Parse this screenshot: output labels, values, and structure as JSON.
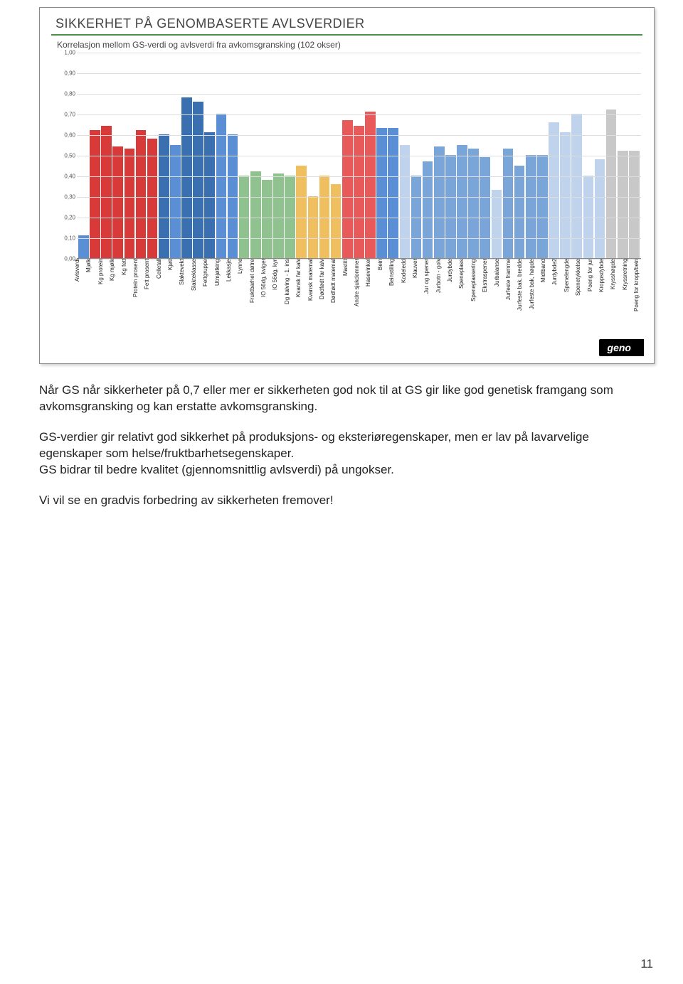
{
  "slide": {
    "title": "SIKKERHET PÅ GENOMBASERTE AVLSVERDIER",
    "subtitle": "Korrelasjon mellom GS-verdi og avlsverdi fra avkomsgransking (102 okser)",
    "logo": "geno"
  },
  "chart": {
    "type": "bar",
    "ylim": [
      0,
      1.0
    ],
    "ytick_step": 0.1,
    "yticks": [
      "0,00",
      "0,10",
      "0,20",
      "0,30",
      "0,40",
      "0,50",
      "0,60",
      "0,70",
      "0,80",
      "0,90",
      "1,00"
    ],
    "grid_color": "#dddddd",
    "background_color": "#ffffff",
    "label_fontsize": 8,
    "bars": [
      {
        "label": "Avlsverdi",
        "value": 0.11,
        "color": "#5a8fd6"
      },
      {
        "label": "Mjølk",
        "value": 0.62,
        "color": "#d83a3a"
      },
      {
        "label": "Kg protein",
        "value": 0.64,
        "color": "#d83a3a"
      },
      {
        "label": "Kg mjølk",
        "value": 0.54,
        "color": "#d83a3a"
      },
      {
        "label": "Kg fett",
        "value": 0.53,
        "color": "#d83a3a"
      },
      {
        "label": "Protein prosent",
        "value": 0.62,
        "color": "#d83a3a"
      },
      {
        "label": "Fett prosent",
        "value": 0.58,
        "color": "#d83a3a"
      },
      {
        "label": "Celletall",
        "value": 0.6,
        "color": "#3a6fb0"
      },
      {
        "label": "Kjøtt",
        "value": 0.55,
        "color": "#5a8fd6"
      },
      {
        "label": "Slaktevekt",
        "value": 0.78,
        "color": "#3a6fb0"
      },
      {
        "label": "Slakteklasse",
        "value": 0.76,
        "color": "#3a6fb0"
      },
      {
        "label": "Fettgruppe",
        "value": 0.61,
        "color": "#3a6fb0"
      },
      {
        "label": "Utmjølking",
        "value": 0.7,
        "color": "#5a8fd6"
      },
      {
        "label": "Lekkasje",
        "value": 0.6,
        "color": "#5a8fd6"
      },
      {
        "label": "Lynne",
        "value": 0.4,
        "color": "#8fc28f"
      },
      {
        "label": "Fruktbarhet døtre",
        "value": 0.42,
        "color": "#8fc28f"
      },
      {
        "label": "IO 56dg, kviger",
        "value": 0.38,
        "color": "#8fc28f"
      },
      {
        "label": "IO 56dg, kyr",
        "value": 0.41,
        "color": "#8fc28f"
      },
      {
        "label": "Dg kalving - 1. ins",
        "value": 0.4,
        "color": "#8fc28f"
      },
      {
        "label": "Kvansk far kalv",
        "value": 0.45,
        "color": "#f0c060"
      },
      {
        "label": "Kvansk matemal",
        "value": 0.3,
        "color": "#f0c060"
      },
      {
        "label": "Dødfødt far kalv",
        "value": 0.4,
        "color": "#f0c060"
      },
      {
        "label": "Dødfødt matemal",
        "value": 0.36,
        "color": "#f0c060"
      },
      {
        "label": "Mastitt",
        "value": 0.67,
        "color": "#e85a5a"
      },
      {
        "label": "Andre sjukdommer",
        "value": 0.64,
        "color": "#e85a5a"
      },
      {
        "label": "Hasevinkel",
        "value": 0.71,
        "color": "#e85a5a"
      },
      {
        "label": "Bein",
        "value": 0.63,
        "color": "#5a8fd6"
      },
      {
        "label": "Beinstilling",
        "value": 0.63,
        "color": "#5a8fd6"
      },
      {
        "label": "Kodeledd",
        "value": 0.55,
        "color": "#bfd3ec"
      },
      {
        "label": "Klauver",
        "value": 0.4,
        "color": "#7aa5d8"
      },
      {
        "label": "Jur og spener",
        "value": 0.47,
        "color": "#7aa5d8"
      },
      {
        "label": "Jurbotn - golv",
        "value": 0.54,
        "color": "#7aa5d8"
      },
      {
        "label": "Jurdybde",
        "value": 0.5,
        "color": "#7aa5d8"
      },
      {
        "label": "Speneplass",
        "value": 0.55,
        "color": "#7aa5d8"
      },
      {
        "label": "Speneplassering",
        "value": 0.53,
        "color": "#7aa5d8"
      },
      {
        "label": "Ekstraspener",
        "value": 0.49,
        "color": "#7aa5d8"
      },
      {
        "label": "Jurbalanse",
        "value": 0.33,
        "color": "#bfd3ec"
      },
      {
        "label": "Jurfeste framme",
        "value": 0.53,
        "color": "#7aa5d8"
      },
      {
        "label": "Jurfeste bak, bredde",
        "value": 0.45,
        "color": "#7aa5d8"
      },
      {
        "label": "Jurfeste bak, høgde",
        "value": 0.5,
        "color": "#7aa5d8"
      },
      {
        "label": "Midtband",
        "value": 0.5,
        "color": "#7aa5d8"
      },
      {
        "label": "Jurdybde2",
        "value": 0.66,
        "color": "#bfd3ec"
      },
      {
        "label": "Spenelengde",
        "value": 0.61,
        "color": "#bfd3ec"
      },
      {
        "label": "Spenetykkelse",
        "value": 0.7,
        "color": "#bfd3ec"
      },
      {
        "label": "Poeng for jur",
        "value": 0.4,
        "color": "#bfd3ec"
      },
      {
        "label": "Kroppsdybde",
        "value": 0.48,
        "color": "#bfd3ec"
      },
      {
        "label": "Krysshøgde",
        "value": 0.72,
        "color": "#c8c8c8"
      },
      {
        "label": "Kryssretning",
        "value": 0.52,
        "color": "#c8c8c8"
      },
      {
        "label": "Poeng for kropp/bein",
        "value": 0.52,
        "color": "#c8c8c8"
      }
    ]
  },
  "body": {
    "p1": "Når GS når sikkerheter på 0,7 eller mer er sikkerheten god nok til at GS gir like god genetisk framgang som avkomsgransking og kan erstatte avkomsgransking.",
    "p2": "GS-verdier gir relativt god sikkerhet på produksjons- og eksteriøregenskaper, men er lav på lavarvelige egenskaper som helse/fruktbarhetsegenskaper.",
    "p3": "GS bidrar til  bedre kvalitet (gjennomsnittlig avlsverdi) på ungokser.",
    "p4": "Vi vil se en gradvis forbedring av sikkerheten fremover!"
  },
  "page_number": "11"
}
